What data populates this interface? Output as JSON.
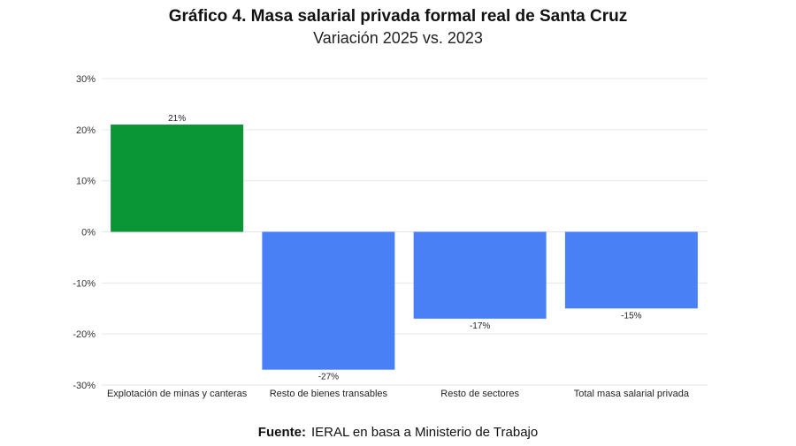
{
  "header": {
    "title": "Gráfico 4. Masa salarial privada formal real de Santa Cruz",
    "subtitle": "Variación 2025 vs. 2023"
  },
  "footer": {
    "source_label": "Fuente:",
    "source_text": "IERAL en basa a Ministerio de Trabajo"
  },
  "chart_data": {
    "type": "bar",
    "title": "Gráfico 4. Masa salarial privada formal real de Santa Cruz",
    "subtitle": "Variación 2025 vs. 2023",
    "categories": [
      "Explotación de minas y canteras",
      "Resto de bienes transables",
      "Resto de sectores",
      "Total masa salarial privada"
    ],
    "values": [
      21,
      -27,
      -17,
      -15
    ],
    "value_labels": [
      "21%",
      "-27%",
      "-17%",
      "-15%"
    ],
    "colors": [
      "#0a9536",
      "#4a80f5",
      "#4a80f5",
      "#4a80f5"
    ],
    "ylim": [
      -30,
      30
    ],
    "yticks": [
      30,
      20,
      10,
      0,
      -10,
      -20,
      -30
    ],
    "ytick_labels": [
      "30%",
      "20%",
      "10%",
      "0%",
      "-10%",
      "-20%",
      "-30%"
    ],
    "grid": true,
    "legend": false
  }
}
